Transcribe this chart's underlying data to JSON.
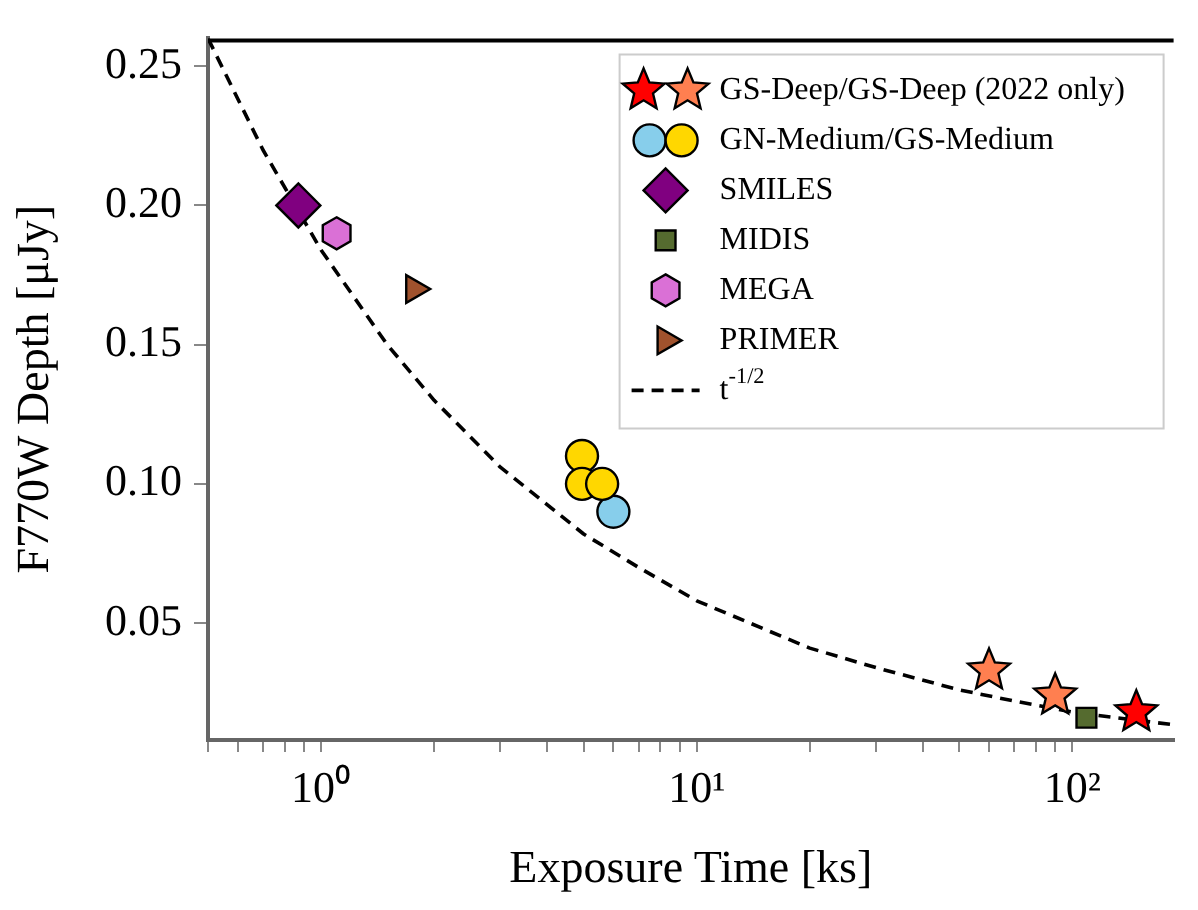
{
  "chart_data": {
    "type": "scatter",
    "xlabel": "Exposure Time [ks]",
    "ylabel": "F770W Depth [μJy]",
    "log": "x",
    "grid": false,
    "legend": "top right",
    "xlim": [
      0.5,
      186
    ],
    "ylim": [
      0.008,
      0.26
    ],
    "xticks": [
      {
        "value": 0.5,
        "label": null
      },
      {
        "value": 0.6,
        "label": null
      },
      {
        "value": 0.7,
        "label": null
      },
      {
        "value": 0.8,
        "label": null
      },
      {
        "value": 0.9,
        "label": null
      },
      {
        "value": 1,
        "label": "10⁰"
      },
      {
        "value": 2,
        "label": null
      },
      {
        "value": 3,
        "label": null
      },
      {
        "value": 4,
        "label": null
      },
      {
        "value": 5,
        "label": null
      },
      {
        "value": 6,
        "label": null
      },
      {
        "value": 7,
        "label": null
      },
      {
        "value": 8,
        "label": null
      },
      {
        "value": 9,
        "label": null
      },
      {
        "value": 10,
        "label": "10¹"
      },
      {
        "value": 20,
        "label": null
      },
      {
        "value": 30,
        "label": null
      },
      {
        "value": 40,
        "label": null
      },
      {
        "value": 50,
        "label": null
      },
      {
        "value": 60,
        "label": null
      },
      {
        "value": 70,
        "label": null
      },
      {
        "value": 80,
        "label": null
      },
      {
        "value": 90,
        "label": null
      },
      {
        "value": 100,
        "label": "10²"
      }
    ],
    "yticks": [
      {
        "value": 0.05,
        "label": "0.05"
      },
      {
        "value": 0.1,
        "label": "0.10"
      },
      {
        "value": 0.15,
        "label": "0.15"
      },
      {
        "value": 0.2,
        "label": "0.20"
      },
      {
        "value": 0.25,
        "label": "0.25"
      }
    ],
    "series": [
      {
        "name": "GS-Deep/GS-Deep (2022 only)",
        "marker": "star",
        "colors": [
          "#ff0000",
          "#ff7f50",
          "#ff7f50"
        ],
        "x": [
          148,
          60,
          90
        ],
        "values": [
          0.018,
          0.033,
          0.024
        ]
      },
      {
        "name": "GN-Medium/GS-Medium",
        "marker": "circle",
        "colors": [
          "#87ceeb",
          "#ffd700",
          "#ffd700",
          "#ffd700"
        ],
        "x": [
          6.0,
          4.95,
          4.95,
          5.6
        ],
        "values": [
          0.09,
          0.11,
          0.1,
          0.1
        ]
      },
      {
        "name": "SMILES",
        "marker": "diamond",
        "color": "#800080",
        "x": [
          0.87
        ],
        "values": [
          0.2
        ]
      },
      {
        "name": "MIDIS",
        "marker": "square",
        "color": "#556b2f",
        "x": [
          109
        ],
        "values": [
          0.016
        ]
      },
      {
        "name": "MEGA",
        "color": "#da70d6",
        "x": [
          1.1
        ],
        "values": [
          0.19
        ]
      },
      {
        "name": "PRIMER",
        "marker": "triangle",
        "color": "#a0522d",
        "x": [
          1.77
        ],
        "values": [
          0.17
        ]
      },
      {
        "name": "t$^{-1/2}$",
        "type": "line",
        "marker": "none",
        "line_style": "dashed",
        "color": "#000000",
        "x": [
          0.5,
          0.7,
          1,
          1.5,
          2,
          3,
          5,
          7,
          10,
          20,
          30,
          50,
          70,
          100,
          150,
          186
        ],
        "values": [
          0.26,
          0.22,
          0.184,
          0.15,
          0.13,
          0.106,
          0.082,
          0.07,
          0.058,
          0.041,
          0.034,
          0.026,
          0.022,
          0.018,
          0.015,
          0.0135
        ]
      }
    ]
  }
}
